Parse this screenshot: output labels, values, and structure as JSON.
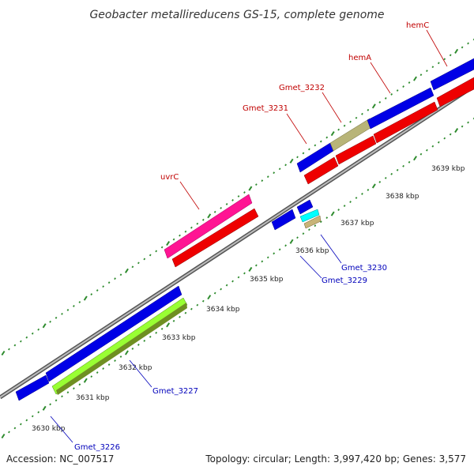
{
  "title": "Geobacter metallireducens GS-15, complete genome",
  "footer": {
    "accession": "Accession: NC_007517",
    "summary": "Topology: circular; Length: 3,997,420 bp; Genes: 3,577"
  },
  "colors": {
    "backbone": "#8c8c8c",
    "tick": "#2e8b2e",
    "forward_gene": "#0000ee",
    "reverse_gene": "#ee0000",
    "forward_label": "#c00000",
    "reverse_label": "#0000bb",
    "magenta_gene": "#ff1493",
    "olive_gene": "#bdb76b",
    "lime_gene": "#99ff33",
    "cyan_gene": "#00ffff"
  },
  "tick_labels": [
    "3630 kbp",
    "3631 kbp",
    "3632 kbp",
    "3633 kbp",
    "3634 kbp",
    "3635 kbp",
    "3636 kbp",
    "3637 kbp",
    "3638 kbp",
    "3639 kbp"
  ],
  "features": [
    {
      "label": "Gmet_3226"
    },
    {
      "label": "Gmet_3227"
    },
    {
      "label": "Gmet_3229"
    },
    {
      "label": "Gmet_3230"
    },
    {
      "label": "uvrC"
    },
    {
      "label": "Gmet_3231"
    },
    {
      "label": "Gmet_3232"
    },
    {
      "label": "hemA"
    },
    {
      "label": "hemC"
    }
  ]
}
